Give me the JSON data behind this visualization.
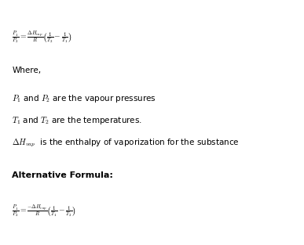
{
  "background_color": "#ffffff",
  "figsize": [
    3.87,
    3.13
  ],
  "dpi": 100,
  "formula1": "$\\frac{P_1}{P_2} = \\frac{\\Delta H_{vap}}{R}\\left(\\frac{1}{T_2} - \\frac{1}{T_1}\\right)$",
  "where_text": "Where,",
  "line1": "$P_1$ and $P_2$ are the vapour pressures",
  "line2": "$T_1$ and $T_2$ are the temperatures.",
  "line3": "$\\Delta H_{vap}$  is the enthalpy of vaporization for the substance",
  "alt_heading": "Alternative Formula:",
  "formula2": "$\\frac{P_1}{P_2} = \\frac{-\\Delta H_{vap}}{R}\\left(\\frac{1}{T_1} - \\frac{1}{T_2}\\right)$",
  "text_color": "#000000",
  "font_size_formula": 7,
  "font_size_text": 7.5,
  "font_size_heading": 8
}
